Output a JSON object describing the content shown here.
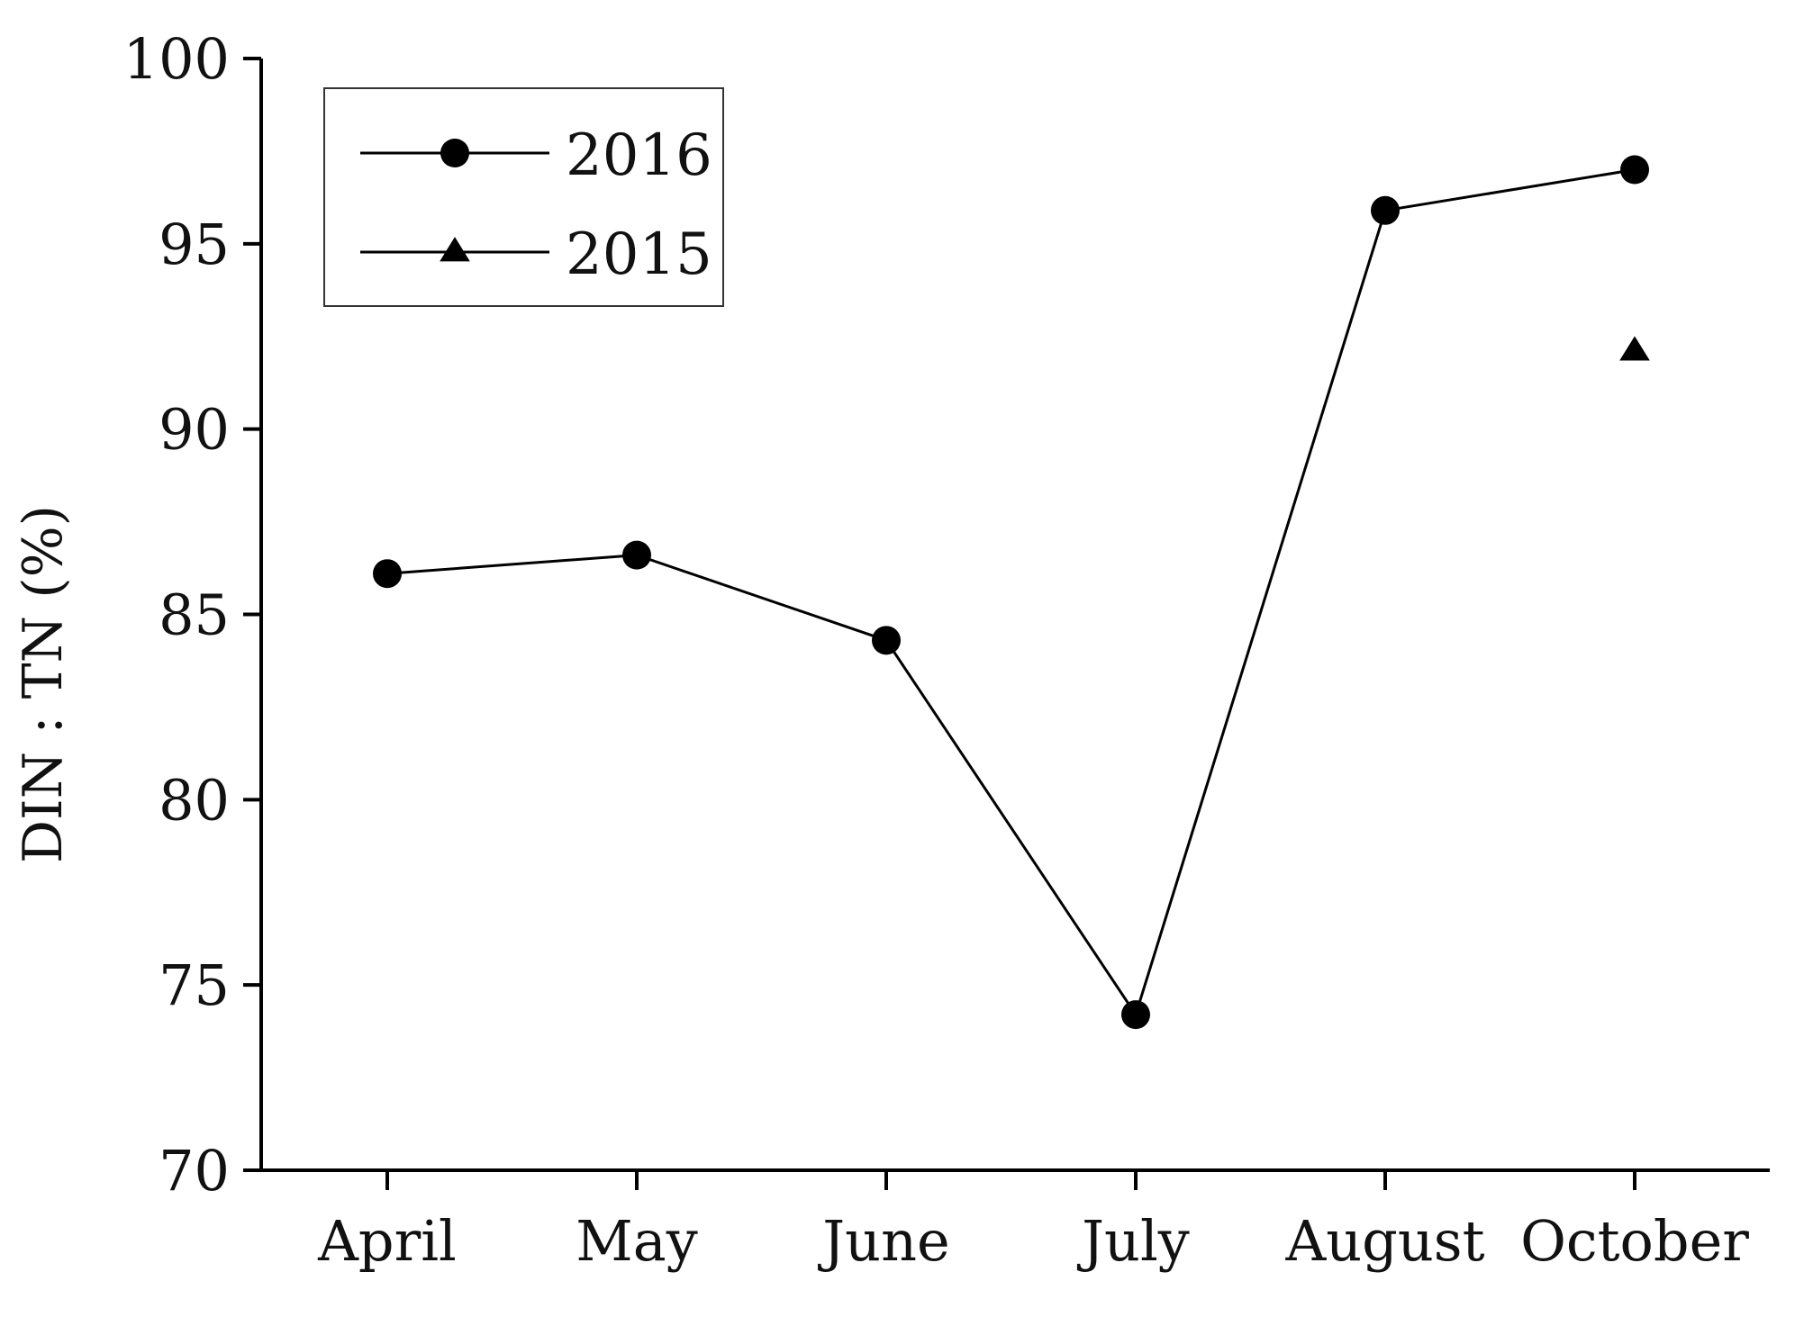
{
  "chart_data": {
    "type": "line",
    "title": "",
    "xlabel": "",
    "ylabel": "DIN : TN (%)",
    "categories": [
      "April",
      "May",
      "June",
      "July",
      "August",
      "October"
    ],
    "yticks": [
      "70",
      "75",
      "80",
      "85",
      "90",
      "95",
      "100"
    ],
    "ylim": [
      70,
      100
    ],
    "grid": false,
    "legend_position": "top-left",
    "series": [
      {
        "name": "2016",
        "marker": "circle",
        "color": "#000000",
        "values": [
          86.1,
          86.6,
          84.3,
          74.2,
          95.9,
          97.0
        ]
      },
      {
        "name": "2015",
        "marker": "triangle",
        "color": "#000000",
        "values": [
          null,
          null,
          null,
          null,
          null,
          92.1
        ]
      }
    ]
  }
}
